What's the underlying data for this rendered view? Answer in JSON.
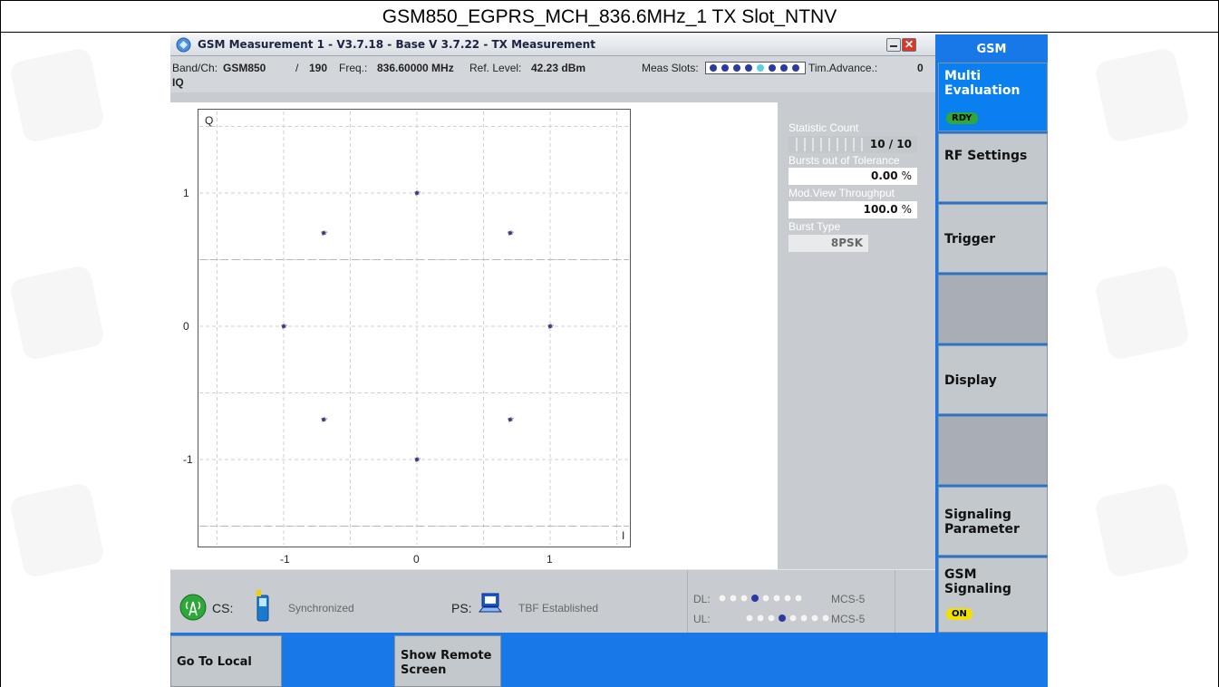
{
  "outer_title": "GSM850_EGPRS_MCH_836.6MHz_1 TX Slot_NTNV",
  "window": {
    "title": "GSM Measurement 1 - V3.7.18 - Base V 3.7.22 - TX Measurement",
    "close_glyph": "✕"
  },
  "info": {
    "band_label": "Band/Ch:",
    "band_value": "GSM850",
    "channel_sep": "/",
    "channel_value": "190",
    "freq_label": "Freq.:",
    "freq_value": "836.60000 MHz",
    "ref_label": "Ref. Level:",
    "ref_value": "42.23 dBm",
    "slots_label": "Meas Slots:",
    "timing_label": "Tim.Advance.:",
    "timing_value": "0",
    "view_label": "IQ"
  },
  "plot": {
    "y_axis_label": "Q",
    "x_axis_label": "I",
    "y_ticks": [
      "1",
      "0",
      "-1"
    ],
    "x_ticks": [
      "-1",
      "0",
      "1"
    ],
    "points": [
      {
        "i": 0.0,
        "q": 1.0
      },
      {
        "i": 0.7,
        "q": 0.7
      },
      {
        "i": 1.0,
        "q": 0.0
      },
      {
        "i": 0.7,
        "q": -0.7
      },
      {
        "i": 0.0,
        "q": -1.0
      },
      {
        "i": -0.7,
        "q": -0.7
      },
      {
        "i": -1.0,
        "q": 0.0
      },
      {
        "i": -0.7,
        "q": 0.7
      }
    ]
  },
  "stats": {
    "statistic_count_label": "Statistic Count",
    "statistic_count_value": "10 / 10",
    "statistic_count_fill": 1.0,
    "bursts_label": "Bursts out of Tolerance",
    "bursts_value": "0.00",
    "bursts_unit": "%",
    "throughput_label": "Mod.View Throughput",
    "throughput_value": "100.0",
    "throughput_unit": "%",
    "burst_type_label": "Burst Type",
    "burst_type_value": "8PSK"
  },
  "status": {
    "cs_label": "CS:",
    "cs_state": "Synchronized",
    "ps_label": "PS:",
    "ps_state": "TBF Established",
    "dl_label": "DL:",
    "dl_mcs": "MCS-5",
    "ul_label": "UL:",
    "ul_mcs": "MCS-5"
  },
  "right_panel": {
    "header": "GSM",
    "buttons": [
      {
        "label": "Multi Evaluation",
        "badge": "RDY"
      },
      {
        "label": "RF Settings"
      },
      {
        "label": "Trigger"
      },
      {
        "label": ""
      },
      {
        "label": "Display"
      },
      {
        "label": ""
      },
      {
        "label": "Signaling Parameter"
      },
      {
        "label": "GSM Signaling",
        "badge": "ON"
      }
    ]
  },
  "bottom_bar": {
    "go_local": "Go To Local",
    "show_remote": "Show Remote Screen"
  },
  "colors": {
    "accent_blue": "#1878e8",
    "panel_gray": "#c8ccd0",
    "badge_green": "#2fa83a",
    "badge_yellow": "#f2e000",
    "point_color": "#3a3a78"
  }
}
